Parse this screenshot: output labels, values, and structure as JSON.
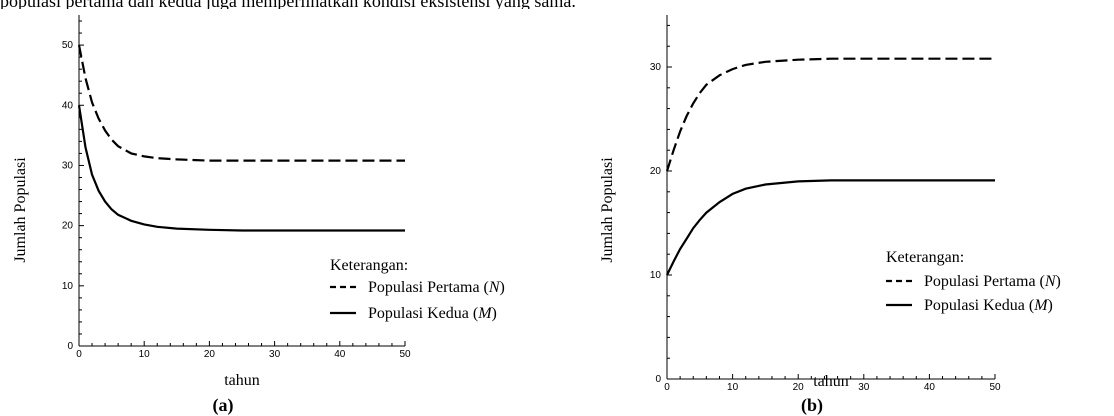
{
  "top_text": "populasi pertama dan kedua juga memperlihatkan kondisi eksistensi yang sama.",
  "chart_data": [
    {
      "type": "line",
      "panel_label": "(a)",
      "xlabel": "tahun",
      "ylabel": "Jumlah Populasi",
      "xlim": [
        0,
        50
      ],
      "ylim": [
        0,
        55
      ],
      "xticks": [
        0,
        10,
        20,
        30,
        40,
        50
      ],
      "yticks": [
        0,
        10,
        20,
        30,
        40,
        50
      ],
      "grid": false,
      "legend_title": "Keterangan:",
      "series": [
        {
          "name": "Populasi Pertama (N)",
          "name_main": "Populasi Pertama (",
          "name_var": "N",
          "name_end": ")",
          "style": "dashed",
          "x": [
            0,
            1,
            2,
            3,
            4,
            5,
            6,
            8,
            10,
            12,
            15,
            20,
            25,
            30,
            40,
            50
          ],
          "y": [
            50,
            44.5,
            40.5,
            37.8,
            35.8,
            34.3,
            33.2,
            32,
            31.5,
            31.2,
            31,
            30.8,
            30.8,
            30.8,
            30.8,
            30.8
          ]
        },
        {
          "name": "Populasi Kedua (M)",
          "name_main": "Populasi Kedua (",
          "name_var": "M",
          "name_end": ")",
          "style": "solid",
          "x": [
            0,
            1,
            2,
            3,
            4,
            5,
            6,
            8,
            10,
            12,
            15,
            20,
            25,
            30,
            40,
            50
          ],
          "y": [
            40,
            33,
            28.5,
            25.8,
            24,
            22.7,
            21.8,
            20.8,
            20.2,
            19.8,
            19.5,
            19.3,
            19.2,
            19.2,
            19.2,
            19.2
          ]
        }
      ]
    },
    {
      "type": "line",
      "panel_label": "(b)",
      "xlabel": "tahun",
      "ylabel": "Jumlah Populasi",
      "xlim": [
        0,
        50
      ],
      "ylim": [
        0,
        35
      ],
      "xticks": [
        0,
        10,
        20,
        30,
        40,
        50
      ],
      "yticks": [
        0,
        10,
        20,
        30
      ],
      "grid": false,
      "legend_title": "Keterangan:",
      "series": [
        {
          "name": "Populasi Pertama (N)",
          "name_main": "Populasi Pertama (",
          "name_var": "N",
          "name_end": ")",
          "style": "dashed",
          "x": [
            0,
            1,
            2,
            3,
            4,
            5,
            6,
            8,
            10,
            12,
            15,
            20,
            25,
            30,
            40,
            50
          ],
          "y": [
            20,
            22,
            23.8,
            25.3,
            26.5,
            27.5,
            28.3,
            29.2,
            29.8,
            30.2,
            30.5,
            30.7,
            30.8,
            30.8,
            30.8,
            30.8
          ]
        },
        {
          "name": "Populasi Kedua (M)",
          "name_main": "Populasi Kedua (",
          "name_var": "M",
          "name_end": ")",
          "style": "solid",
          "x": [
            0,
            1,
            2,
            3,
            4,
            5,
            6,
            8,
            10,
            12,
            15,
            20,
            25,
            30,
            40,
            50
          ],
          "y": [
            10,
            11.3,
            12.5,
            13.5,
            14.5,
            15.3,
            16,
            17,
            17.8,
            18.3,
            18.7,
            19,
            19.1,
            19.1,
            19.1,
            19.1
          ]
        }
      ]
    }
  ]
}
